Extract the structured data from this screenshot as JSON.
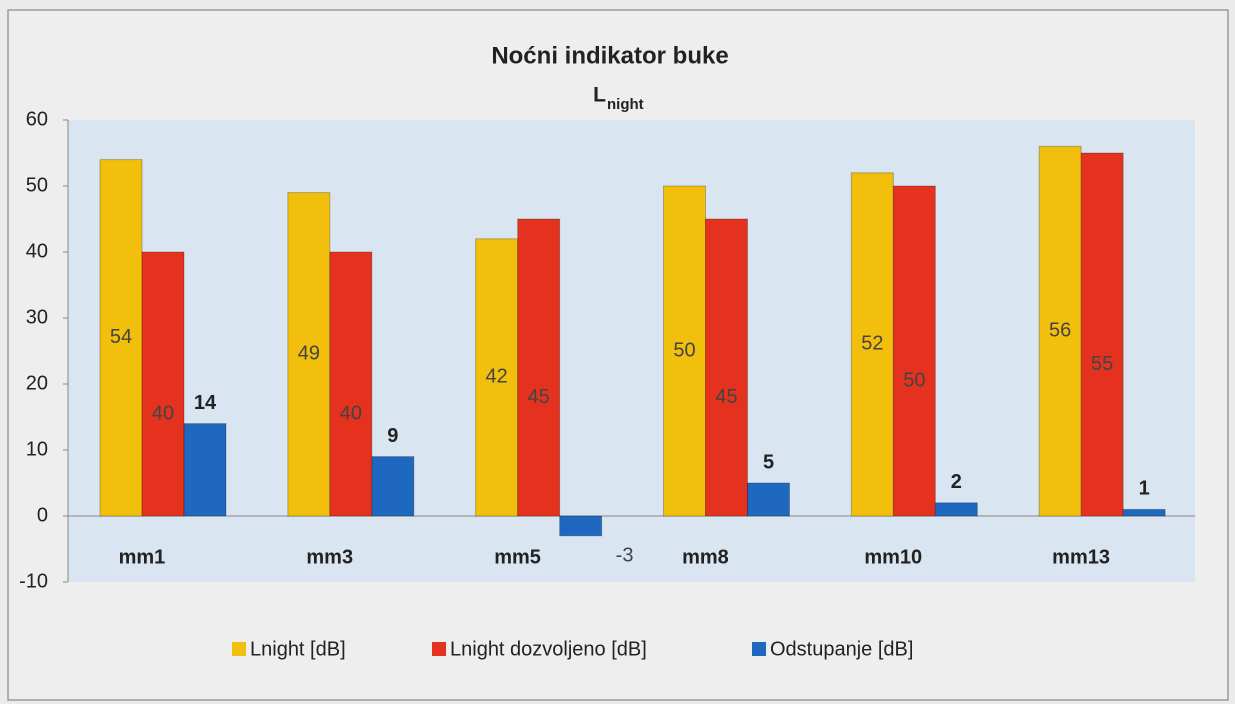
{
  "chart_data": {
    "type": "bar",
    "title": "Noćni indikator buke",
    "subtitle": [
      "L",
      "night"
    ],
    "categories": [
      "mm1",
      "mm3",
      "mm5",
      "mm8",
      "mm10",
      "mm13"
    ],
    "series": [
      {
        "name": "Lnight [dB]",
        "color": "#f2bf0c",
        "values": [
          54,
          49,
          42,
          50,
          52,
          56
        ]
      },
      {
        "name": "Lnight dozvoljeno [dB]",
        "color": "#e5321f",
        "values": [
          40,
          40,
          45,
          45,
          50,
          55
        ]
      },
      {
        "name": "Odstupanje [dB]",
        "color": "#1f68c0",
        "values": [
          14,
          9,
          -3,
          5,
          2,
          1
        ]
      }
    ],
    "ylim": [
      -10,
      60
    ],
    "yticks": [
      -10,
      0,
      10,
      20,
      30,
      40,
      50,
      60
    ],
    "legend": "bottom"
  }
}
